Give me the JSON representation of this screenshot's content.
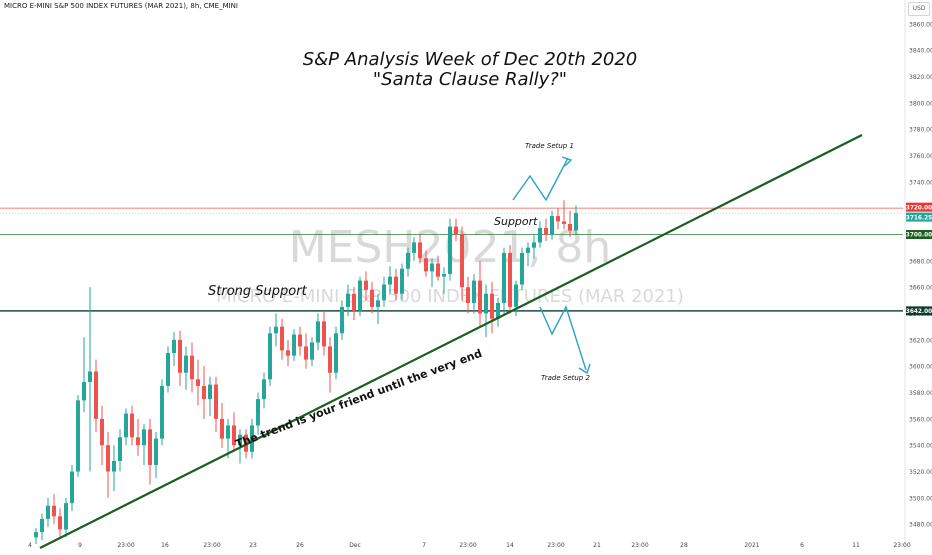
{
  "header": {
    "symbol_line": "MICRO E-MINI S&P 500 INDEX FUTURES (MAR 2021), 8h, CME_MINI"
  },
  "title": {
    "line1": "S&P Analysis Week of Dec 20th 2020",
    "line2": "\"Santa Clause Rally?\""
  },
  "watermark": {
    "symbol": "MESH2021, 8h",
    "description": "MICRO E-MINI S&P 500 INDEX FUTURES (MAR 2021)"
  },
  "currency_label": "USD",
  "annotations": {
    "strong_support": "Strong Support",
    "support": "Support",
    "trade_setup_1": "Trade Setup 1",
    "trade_setup_2": "Trade Setup 2",
    "trend_note": "The trend is your friend until the very end"
  },
  "colors": {
    "up": "#26a69a",
    "down": "#ef5350",
    "trendline": "#1b5e20",
    "resistance": "#ef5350",
    "support_line": "#2e7d32",
    "strong_support_line": "#1b4d3e",
    "arrow": "#29a3c6"
  },
  "chart_data": {
    "type": "candlestick",
    "y_axis": {
      "ticks": [
        3480,
        3500,
        3520,
        3540,
        3560,
        3580,
        3600,
        3620,
        3640,
        3660,
        3680,
        3700,
        3720,
        3740,
        3760,
        3780,
        3800,
        3820,
        3840,
        3860
      ],
      "range": [
        3468,
        3872
      ]
    },
    "x_ticks": [
      "4",
      "9",
      "23:00",
      "16",
      "23:00",
      "23",
      "26",
      "Dec",
      "7",
      "23:00",
      "14",
      "23:00",
      "21",
      "23:00",
      "28",
      "2021",
      "6",
      "11",
      "23:00"
    ],
    "price_levels": [
      {
        "name": "resistance",
        "value": 3720.0,
        "label": "3720.00"
      },
      {
        "name": "last_price",
        "value": 3716.25,
        "label": "3716.25"
      },
      {
        "name": "support",
        "value": 3700.0,
        "label": "3700.00"
      },
      {
        "name": "strong_support",
        "value": 3642.0,
        "label": "3642.00"
      }
    ],
    "candles": [
      {
        "o": 3470,
        "h": 3477,
        "l": 3465,
        "c": 3474
      },
      {
        "o": 3474,
        "h": 3488,
        "l": 3468,
        "c": 3484
      },
      {
        "o": 3484,
        "h": 3500,
        "l": 3478,
        "c": 3494
      },
      {
        "o": 3494,
        "h": 3503,
        "l": 3480,
        "c": 3486
      },
      {
        "o": 3486,
        "h": 3492,
        "l": 3470,
        "c": 3476
      },
      {
        "o": 3476,
        "h": 3500,
        "l": 3470,
        "c": 3496
      },
      {
        "o": 3496,
        "h": 3525,
        "l": 3490,
        "c": 3520
      },
      {
        "o": 3520,
        "h": 3578,
        "l": 3516,
        "c": 3574
      },
      {
        "o": 3574,
        "h": 3622,
        "l": 3565,
        "c": 3588
      },
      {
        "o": 3588,
        "h": 3660,
        "l": 3520,
        "c": 3596
      },
      {
        "o": 3596,
        "h": 3605,
        "l": 3550,
        "c": 3560
      },
      {
        "o": 3560,
        "h": 3570,
        "l": 3525,
        "c": 3540
      },
      {
        "o": 3540,
        "h": 3550,
        "l": 3500,
        "c": 3520
      },
      {
        "o": 3520,
        "h": 3540,
        "l": 3505,
        "c": 3528
      },
      {
        "o": 3528,
        "h": 3552,
        "l": 3520,
        "c": 3546
      },
      {
        "o": 3546,
        "h": 3568,
        "l": 3540,
        "c": 3564
      },
      {
        "o": 3564,
        "h": 3570,
        "l": 3540,
        "c": 3546
      },
      {
        "o": 3546,
        "h": 3560,
        "l": 3532,
        "c": 3540
      },
      {
        "o": 3540,
        "h": 3556,
        "l": 3525,
        "c": 3552
      },
      {
        "o": 3552,
        "h": 3560,
        "l": 3510,
        "c": 3525
      },
      {
        "o": 3525,
        "h": 3550,
        "l": 3515,
        "c": 3545
      },
      {
        "o": 3545,
        "h": 3590,
        "l": 3540,
        "c": 3585
      },
      {
        "o": 3585,
        "h": 3615,
        "l": 3580,
        "c": 3610
      },
      {
        "o": 3610,
        "h": 3626,
        "l": 3600,
        "c": 3620
      },
      {
        "o": 3620,
        "h": 3627,
        "l": 3585,
        "c": 3595
      },
      {
        "o": 3595,
        "h": 3615,
        "l": 3582,
        "c": 3608
      },
      {
        "o": 3608,
        "h": 3618,
        "l": 3580,
        "c": 3590
      },
      {
        "o": 3590,
        "h": 3605,
        "l": 3570,
        "c": 3585
      },
      {
        "o": 3585,
        "h": 3600,
        "l": 3560,
        "c": 3575
      },
      {
        "o": 3575,
        "h": 3592,
        "l": 3562,
        "c": 3586
      },
      {
        "o": 3586,
        "h": 3592,
        "l": 3550,
        "c": 3560
      },
      {
        "o": 3560,
        "h": 3572,
        "l": 3538,
        "c": 3545
      },
      {
        "o": 3545,
        "h": 3560,
        "l": 3530,
        "c": 3555
      },
      {
        "o": 3555,
        "h": 3565,
        "l": 3535,
        "c": 3540
      },
      {
        "o": 3540,
        "h": 3552,
        "l": 3526,
        "c": 3548
      },
      {
        "o": 3548,
        "h": 3552,
        "l": 3530,
        "c": 3535
      },
      {
        "o": 3535,
        "h": 3560,
        "l": 3530,
        "c": 3555
      },
      {
        "o": 3555,
        "h": 3580,
        "l": 3548,
        "c": 3575
      },
      {
        "o": 3575,
        "h": 3595,
        "l": 3568,
        "c": 3590
      },
      {
        "o": 3590,
        "h": 3630,
        "l": 3585,
        "c": 3625
      },
      {
        "o": 3625,
        "h": 3640,
        "l": 3615,
        "c": 3630
      },
      {
        "o": 3630,
        "h": 3636,
        "l": 3605,
        "c": 3612
      },
      {
        "o": 3612,
        "h": 3620,
        "l": 3600,
        "c": 3608
      },
      {
        "o": 3608,
        "h": 3628,
        "l": 3604,
        "c": 3624
      },
      {
        "o": 3624,
        "h": 3630,
        "l": 3608,
        "c": 3615
      },
      {
        "o": 3615,
        "h": 3625,
        "l": 3598,
        "c": 3605
      },
      {
        "o": 3605,
        "h": 3622,
        "l": 3600,
        "c": 3618
      },
      {
        "o": 3618,
        "h": 3640,
        "l": 3612,
        "c": 3634
      },
      {
        "o": 3634,
        "h": 3642,
        "l": 3608,
        "c": 3615
      },
      {
        "o": 3615,
        "h": 3622,
        "l": 3580,
        "c": 3595
      },
      {
        "o": 3595,
        "h": 3630,
        "l": 3590,
        "c": 3625
      },
      {
        "o": 3625,
        "h": 3650,
        "l": 3620,
        "c": 3645
      },
      {
        "o": 3645,
        "h": 3662,
        "l": 3638,
        "c": 3655
      },
      {
        "o": 3655,
        "h": 3660,
        "l": 3635,
        "c": 3642
      },
      {
        "o": 3642,
        "h": 3668,
        "l": 3638,
        "c": 3665
      },
      {
        "o": 3665,
        "h": 3672,
        "l": 3650,
        "c": 3658
      },
      {
        "o": 3658,
        "h": 3664,
        "l": 3640,
        "c": 3645
      },
      {
        "o": 3645,
        "h": 3655,
        "l": 3632,
        "c": 3650
      },
      {
        "o": 3650,
        "h": 3668,
        "l": 3645,
        "c": 3662
      },
      {
        "o": 3662,
        "h": 3676,
        "l": 3655,
        "c": 3668
      },
      {
        "o": 3668,
        "h": 3674,
        "l": 3650,
        "c": 3655
      },
      {
        "o": 3655,
        "h": 3678,
        "l": 3650,
        "c": 3674
      },
      {
        "o": 3674,
        "h": 3690,
        "l": 3668,
        "c": 3686
      },
      {
        "o": 3686,
        "h": 3698,
        "l": 3680,
        "c": 3694
      },
      {
        "o": 3694,
        "h": 3700,
        "l": 3678,
        "c": 3682
      },
      {
        "o": 3682,
        "h": 3688,
        "l": 3668,
        "c": 3672
      },
      {
        "o": 3672,
        "h": 3682,
        "l": 3660,
        "c": 3678
      },
      {
        "o": 3678,
        "h": 3684,
        "l": 3665,
        "c": 3668
      },
      {
        "o": 3668,
        "h": 3675,
        "l": 3655,
        "c": 3670
      },
      {
        "o": 3670,
        "h": 3712,
        "l": 3665,
        "c": 3706
      },
      {
        "o": 3706,
        "h": 3712,
        "l": 3695,
        "c": 3700
      },
      {
        "o": 3700,
        "h": 3706,
        "l": 3650,
        "c": 3660
      },
      {
        "o": 3660,
        "h": 3668,
        "l": 3640,
        "c": 3648
      },
      {
        "o": 3648,
        "h": 3670,
        "l": 3640,
        "c": 3665
      },
      {
        "o": 3665,
        "h": 3680,
        "l": 3630,
        "c": 3640
      },
      {
        "o": 3640,
        "h": 3662,
        "l": 3622,
        "c": 3655
      },
      {
        "o": 3655,
        "h": 3664,
        "l": 3625,
        "c": 3636
      },
      {
        "o": 3636,
        "h": 3652,
        "l": 3630,
        "c": 3648
      },
      {
        "o": 3648,
        "h": 3690,
        "l": 3640,
        "c": 3686
      },
      {
        "o": 3686,
        "h": 3692,
        "l": 3640,
        "c": 3645
      },
      {
        "o": 3645,
        "h": 3665,
        "l": 3638,
        "c": 3662
      },
      {
        "o": 3662,
        "h": 3690,
        "l": 3658,
        "c": 3686
      },
      {
        "o": 3686,
        "h": 3694,
        "l": 3676,
        "c": 3690
      },
      {
        "o": 3690,
        "h": 3700,
        "l": 3682,
        "c": 3694
      },
      {
        "o": 3694,
        "h": 3710,
        "l": 3690,
        "c": 3705
      },
      {
        "o": 3705,
        "h": 3712,
        "l": 3695,
        "c": 3700
      },
      {
        "o": 3700,
        "h": 3718,
        "l": 3696,
        "c": 3714
      },
      {
        "o": 3714,
        "h": 3720,
        "l": 3704,
        "c": 3710
      },
      {
        "o": 3710,
        "h": 3726,
        "l": 3704,
        "c": 3708
      },
      {
        "o": 3708,
        "h": 3718,
        "l": 3698,
        "c": 3703
      },
      {
        "o": 3703,
        "h": 3722,
        "l": 3700,
        "c": 3716.25
      }
    ]
  }
}
